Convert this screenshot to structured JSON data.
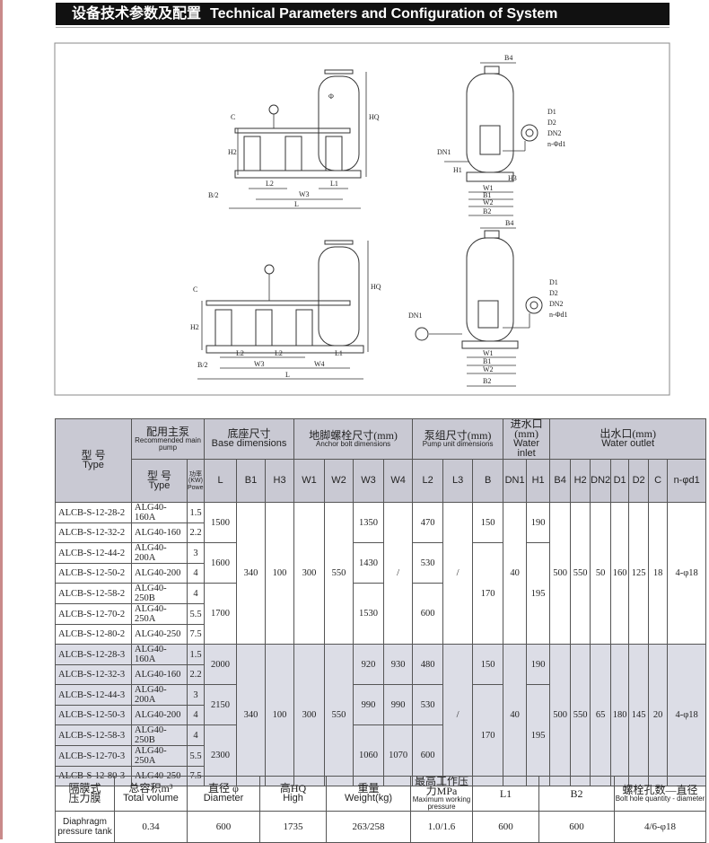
{
  "header": {
    "title_cn": "设备技术参数及配置",
    "title_en": "Technical Parameters and Configuration of System"
  },
  "drawings": [
    {
      "labels": [
        "C",
        "H2",
        "HQ",
        "Φ",
        "B/2",
        "L2",
        "W3",
        "L1",
        "L"
      ]
    },
    {
      "labels": [
        "B4",
        "D1",
        "D2",
        "DN2",
        "n-Φd1",
        "DN1",
        "H1",
        "H3",
        "W1",
        "B1",
        "W2",
        "B2"
      ]
    },
    {
      "labels": [
        "C",
        "H2",
        "HQ",
        "B/2",
        "L2",
        "L2",
        "W3",
        "L1",
        "W4",
        "L"
      ]
    },
    {
      "labels": [
        "B4",
        "D1",
        "D2",
        "DN2",
        "n-Φd1",
        "DN1",
        "W1",
        "B1",
        "W2",
        "B2"
      ]
    }
  ],
  "table": {
    "head": {
      "type": {
        "cn": "型 号",
        "en": "Type"
      },
      "groups": [
        {
          "cn": "配用主泵",
          "en": "Recommended main pump",
          "sub": [
            {
              "cn": "型 号",
              "en": "Type"
            },
            {
              "cn": "功率",
              "unit": "(KW)",
              "en": "Power"
            }
          ]
        },
        {
          "cn": "底座尺寸",
          "en": "Base dimensions",
          "sub": [
            "L",
            "B1",
            "H3"
          ]
        },
        {
          "cn": "地脚螺栓尺寸(mm)",
          "en": "Anchor bolt dimensions",
          "sub": [
            "W1",
            "W2",
            "W3",
            "W4"
          ]
        },
        {
          "cn": "泵组尺寸(mm)",
          "en": "Pump unit dimensions",
          "sub": [
            "L2",
            "L3",
            "B"
          ]
        },
        {
          "cn": "进水口(mm)",
          "en": "Water inlet",
          "sub": [
            "DN1",
            "H1"
          ]
        },
        {
          "cn": "出水口(mm)",
          "en": "Water outlet",
          "sub": [
            "B4",
            "H2",
            "DN2",
            "D1",
            "D2",
            "C",
            "n-φd1"
          ]
        }
      ]
    },
    "groups": [
      {
        "models": [
          [
            "ALCB-S-12-28-2",
            "ALG40-160A",
            1.5
          ],
          [
            "ALCB-S-12-32-2",
            "ALG40-160",
            2.2
          ],
          [
            "ALCB-S-12-44-2",
            "ALG40-200A",
            3
          ],
          [
            "ALCB-S-12-50-2",
            "ALG40-200",
            4
          ],
          [
            "ALCB-S-12-58-2",
            "ALG40-250B",
            4
          ],
          [
            "ALCB-S-12-70-2",
            "ALG40-250A",
            5.5
          ],
          [
            "ALCB-S-12-80-2",
            "ALG40-250",
            7.5
          ]
        ],
        "columns": [
          [
            1500,
            1600,
            1700
          ],
          [
            340
          ],
          [
            100
          ],
          [
            300
          ],
          [
            550
          ],
          [
            1350,
            1430,
            1530
          ],
          [
            "/"
          ],
          [
            470,
            530,
            600
          ],
          [
            "/"
          ],
          [
            150,
            170
          ],
          [
            40
          ],
          [
            190,
            195
          ],
          [
            500
          ],
          [
            550
          ],
          [
            50
          ],
          [
            160
          ],
          [
            125
          ],
          [
            18
          ],
          [
            "4-φ18"
          ]
        ]
      },
      {
        "models": [
          [
            "ALCB-S-12-28-3",
            "ALG40-160A",
            1.5
          ],
          [
            "ALCB-S-12-32-3",
            "ALG40-160",
            2.2
          ],
          [
            "ALCB-S-12-44-3",
            "ALG40-200A",
            3
          ],
          [
            "ALCB-S-12-50-3",
            "ALG40-200",
            4
          ],
          [
            "ALCB-S-12-58-3",
            "ALG40-250B",
            4
          ],
          [
            "ALCB-S-12-70-3",
            "ALG40-250A",
            5.5
          ],
          [
            "ALCB-S-12-80-3",
            "ALG40-250",
            7.5
          ]
        ],
        "columns": [
          [
            2000,
            2150,
            2300
          ],
          [
            340
          ],
          [
            100
          ],
          [
            300
          ],
          [
            550
          ],
          [
            920,
            990,
            1060
          ],
          [
            930,
            990,
            1070
          ],
          [
            480,
            530,
            600
          ],
          [
            "/"
          ],
          [
            150,
            170
          ],
          [
            40
          ],
          [
            190,
            195
          ],
          [
            500
          ],
          [
            550
          ],
          [
            65
          ],
          [
            180
          ],
          [
            145
          ],
          [
            20
          ],
          [
            "4-φ18"
          ]
        ]
      }
    ]
  },
  "tank": {
    "label": [
      "隔膜式",
      "压力膜"
    ],
    "label_en": "Diaphragm pressure tank",
    "columns": [
      {
        "cn": "总容积m³",
        "en": "Total volume"
      },
      {
        "cn": "直径 φ",
        "en": "Diameter"
      },
      {
        "cn": "高HQ",
        "en": "High"
      },
      {
        "cn": "重量",
        "en": "Weight(kg)"
      },
      {
        "cn": "最高工作压力MPa",
        "en": "Maximum working pressure"
      },
      {
        "cn": "L1"
      },
      {
        "cn": "B2"
      },
      {
        "cn": "螺栓孔数—直径",
        "en": "Bolt hole quantity - diameter"
      }
    ],
    "values": [
      0.34,
      600,
      1735,
      "263/258",
      "1.0/1.6",
      600,
      600,
      "4/6-φ18"
    ]
  }
}
